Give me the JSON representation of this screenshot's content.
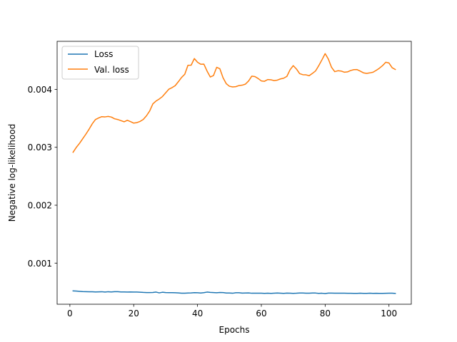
{
  "chart_data": {
    "type": "line",
    "xlabel": "Epochs",
    "ylabel": "Negative log-likelihood",
    "xlim": [
      -4,
      107
    ],
    "ylim": [
      0.00029,
      0.00483
    ],
    "xticks": [
      0,
      20,
      40,
      60,
      80,
      100
    ],
    "yticks": [
      0.001,
      0.002,
      0.003,
      0.004
    ],
    "ytick_labels": [
      "0.001",
      "0.002",
      "0.003",
      "0.004"
    ],
    "grid": false,
    "legend_position": "top-left",
    "series": [
      {
        "name": "Loss",
        "color": "#1f77b4",
        "x": [
          1,
          2,
          3,
          4,
          5,
          6,
          7,
          8,
          9,
          10,
          11,
          12,
          13,
          14,
          15,
          16,
          17,
          18,
          19,
          20,
          21,
          22,
          23,
          24,
          25,
          26,
          27,
          28,
          29,
          30,
          31,
          32,
          33,
          34,
          35,
          36,
          37,
          38,
          39,
          40,
          41,
          42,
          43,
          44,
          45,
          46,
          47,
          48,
          49,
          50,
          51,
          52,
          53,
          54,
          55,
          56,
          57,
          58,
          59,
          60,
          61,
          62,
          63,
          64,
          65,
          66,
          67,
          68,
          69,
          70,
          71,
          72,
          73,
          74,
          75,
          76,
          77,
          78,
          79,
          80,
          81,
          82,
          83,
          84,
          85,
          86,
          87,
          88,
          89,
          90,
          91,
          92,
          93,
          94,
          95,
          96,
          97,
          98,
          99,
          100,
          101,
          102
        ],
        "y": [
          0.00052,
          0.000517,
          0.000513,
          0.000508,
          0.000507,
          0.000506,
          0.000506,
          0.000502,
          0.000504,
          0.000506,
          0.000501,
          0.000506,
          0.000502,
          0.000507,
          0.000507,
          0.000503,
          0.000502,
          0.000501,
          0.000503,
          0.000501,
          0.000501,
          0.000498,
          0.000494,
          0.000492,
          0.000492,
          0.000493,
          0.0005,
          0.000486,
          0.000497,
          0.000491,
          0.00049,
          0.00049,
          0.000489,
          0.000485,
          0.000481,
          0.000481,
          0.000483,
          0.000485,
          0.00049,
          0.000488,
          0.000484,
          0.00049,
          0.0005,
          0.000494,
          0.000492,
          0.000489,
          0.000493,
          0.000492,
          0.000484,
          0.000483,
          0.00048,
          0.000489,
          0.000489,
          0.000482,
          0.000483,
          0.000485,
          0.00048,
          0.00048,
          0.000481,
          0.000481,
          0.000478,
          0.000481,
          0.000478,
          0.000481,
          0.000483,
          0.000481,
          0.000477,
          0.000482,
          0.00048,
          0.000478,
          0.00048,
          0.000484,
          0.000484,
          0.00048,
          0.000481,
          0.000484,
          0.000483,
          0.000477,
          0.00048,
          0.000475,
          0.000482,
          0.000482,
          0.000481,
          0.00048,
          0.000481,
          0.00048,
          0.000479,
          0.000479,
          0.000478,
          0.000478,
          0.00048,
          0.000478,
          0.000478,
          0.00048,
          0.000477,
          0.000479,
          0.000477,
          0.000478,
          0.000479,
          0.00048,
          0.000481,
          0.000477
        ]
      },
      {
        "name": "Val. loss",
        "color": "#ff7f0e",
        "x": [
          1,
          2,
          3,
          4,
          5,
          6,
          7,
          8,
          9,
          10,
          11,
          12,
          13,
          14,
          15,
          16,
          17,
          18,
          19,
          20,
          21,
          22,
          23,
          24,
          25,
          26,
          27,
          28,
          29,
          30,
          31,
          32,
          33,
          34,
          35,
          36,
          37,
          38,
          39,
          40,
          41,
          42,
          43,
          44,
          45,
          46,
          47,
          48,
          49,
          50,
          51,
          52,
          53,
          54,
          55,
          56,
          57,
          58,
          59,
          60,
          61,
          62,
          63,
          64,
          65,
          66,
          67,
          68,
          69,
          70,
          71,
          72,
          73,
          74,
          75,
          76,
          77,
          78,
          79,
          80,
          81,
          82,
          83,
          84,
          85,
          86,
          87,
          88,
          89,
          90,
          91,
          92,
          93,
          94,
          95,
          96,
          97,
          98,
          99,
          100,
          101,
          102
        ],
        "y": [
          0.002915,
          0.002998,
          0.003067,
          0.003147,
          0.003226,
          0.003311,
          0.003405,
          0.003479,
          0.003507,
          0.003529,
          0.003525,
          0.003534,
          0.003522,
          0.003493,
          0.00348,
          0.00346,
          0.003441,
          0.003467,
          0.003444,
          0.003418,
          0.003426,
          0.003447,
          0.003481,
          0.003544,
          0.003627,
          0.003749,
          0.003799,
          0.003834,
          0.003876,
          0.003939,
          0.004003,
          0.00403,
          0.004064,
          0.004133,
          0.004206,
          0.004261,
          0.004417,
          0.004418,
          0.004533,
          0.004469,
          0.004435,
          0.004436,
          0.004315,
          0.004214,
          0.004238,
          0.004381,
          0.004357,
          0.004201,
          0.004099,
          0.004054,
          0.004043,
          0.004047,
          0.004066,
          0.004073,
          0.00409,
          0.004145,
          0.004228,
          0.004221,
          0.004188,
          0.004146,
          0.00414,
          0.00417,
          0.004166,
          0.004152,
          0.00416,
          0.004181,
          0.004193,
          0.004224,
          0.004339,
          0.00441,
          0.004352,
          0.004272,
          0.004254,
          0.004251,
          0.004236,
          0.004276,
          0.004319,
          0.00441,
          0.004511,
          0.004618,
          0.004524,
          0.004381,
          0.004306,
          0.004322,
          0.004317,
          0.004297,
          0.004302,
          0.004326,
          0.004341,
          0.004342,
          0.004316,
          0.004286,
          0.004276,
          0.004285,
          0.004296,
          0.004329,
          0.004366,
          0.004411,
          0.004469,
          0.004456,
          0.004374,
          0.004344
        ]
      }
    ]
  }
}
